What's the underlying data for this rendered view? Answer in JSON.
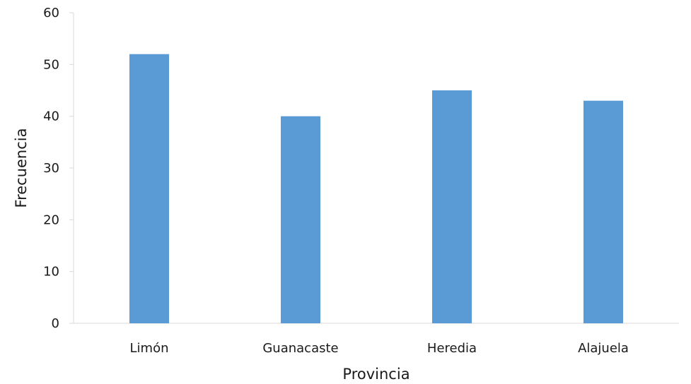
{
  "chart_data": {
    "type": "bar",
    "categories": [
      "Limón",
      "Guanacaste",
      "Heredia",
      "Alajuela"
    ],
    "values": [
      52,
      40,
      45,
      43
    ],
    "title": "",
    "xlabel": "Provincia",
    "ylabel": "Frecuencia",
    "ylim": [
      0,
      60
    ],
    "yticks": [
      0,
      10,
      20,
      30,
      40,
      50,
      60
    ],
    "grid": false,
    "legend": "none",
    "bar_color": "#5b9bd5"
  }
}
